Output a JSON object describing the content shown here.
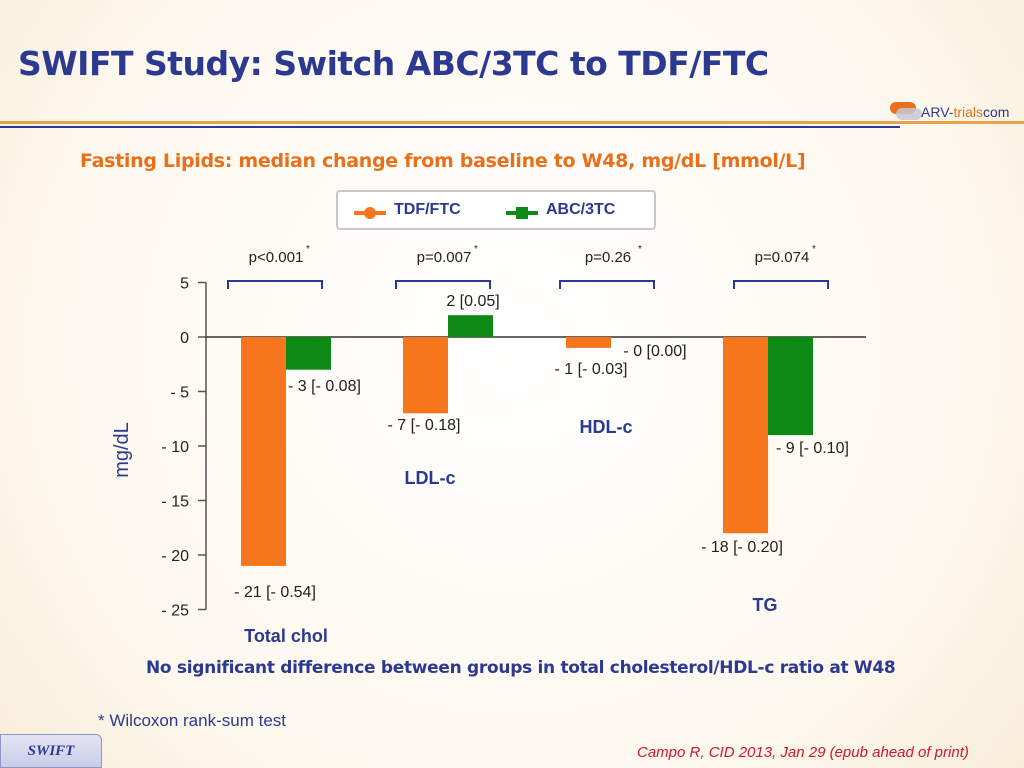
{
  "slide": {
    "title": "SWIFT Study: Switch ABC/3TC to TDF/FTC",
    "subtitle": "Fasting Lipids: median change from baseline to W48, mg/dL [mmol/L]",
    "note": "No significant difference between groups in total cholesterol/HDL-c ratio at W48",
    "footnote": "* Wilcoxon rank-sum test",
    "tag": "SWIFT",
    "citation": "Campo R, CID 2013, Jan 29 (epub ahead of print)",
    "logo": {
      "prefix": "ARV-",
      "accent": "trials",
      "suffix": "com"
    }
  },
  "colors": {
    "tdf_ftc": "#f7761b",
    "abc_3tc": "#0d8a14",
    "title": "#2b3990",
    "accent": "#e8701a"
  },
  "chart_data": {
    "type": "bar",
    "ylabel": "mg/dL",
    "ylim": [
      -25,
      5
    ],
    "yticks": [
      5,
      0,
      -5,
      -10,
      -15,
      -20,
      -25
    ],
    "ytick_labels": [
      "5",
      "0",
      "- 5",
      "- 10",
      "- 15",
      "- 20",
      "- 25"
    ],
    "grid": false,
    "legend_position": "top-center",
    "categories": [
      "Total chol",
      "LDL-c",
      "HDL-c",
      "TG"
    ],
    "p_values": [
      "p<0.001",
      "p=0.007",
      "p=0.26",
      "p=0.074"
    ],
    "series": [
      {
        "name": "TDF/FTC",
        "values": [
          -21,
          -7,
          -1,
          -18
        ],
        "labels": [
          "- 21 [- 0.54]",
          "- 7 [- 0.18]",
          "- 1 [- 0.03]",
          "- 18 [- 0.20]"
        ]
      },
      {
        "name": "ABC/3TC",
        "values": [
          -3,
          2,
          0,
          -9
        ],
        "labels": [
          "- 3 [- 0.08]",
          "2 [0.05]",
          "- 0 [0.00]",
          "- 9 [- 0.10]"
        ]
      }
    ]
  }
}
